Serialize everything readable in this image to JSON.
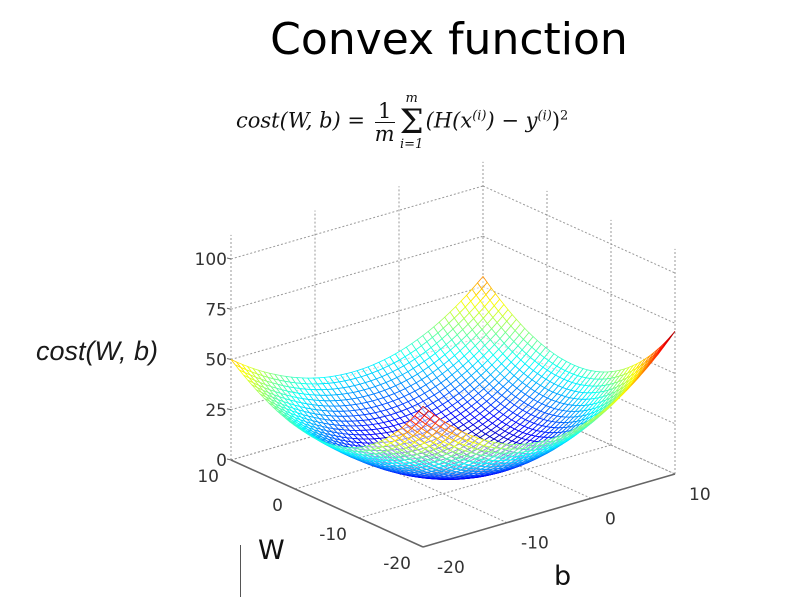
{
  "title": "Convex function",
  "formula": {
    "lhs": "cost(W, b) = ",
    "frac_num": "1",
    "frac_den": "m",
    "sum_upper": "m",
    "sum_lower": "i=1",
    "body_1": "(H(x",
    "body_sup1": "(i)",
    "body_2": ") − y",
    "body_sup2": "(i)",
    "body_3": ")",
    "body_sup3": "2"
  },
  "labels": {
    "z_axis": "cost(W, b)",
    "w_axis": "W",
    "b_axis": "b"
  },
  "chart_data": {
    "type": "surface3d",
    "title": "Convex function",
    "subtitle": "cost(W,b) = 1/m Σ_{i=1}^{m} (H(x^(i)) − y^(i))^2",
    "xlabel": "W",
    "ylabel": "b",
    "zlabel": "cost(W, b)",
    "x_ticks": [
      "10",
      "0",
      "-10",
      "-20"
    ],
    "y_ticks": [
      "-20",
      "-10",
      "0",
      "10"
    ],
    "z_ticks": [
      "0",
      "25",
      "50",
      "75",
      "100"
    ],
    "xlim": [
      -20,
      10
    ],
    "ylim": [
      -20,
      10
    ],
    "zlim": [
      0,
      100
    ],
    "grid": true,
    "colormap": "jet",
    "mesh": "wireframe",
    "corner_values": [
      {
        "W": 10,
        "b": -20,
        "cost": 50
      },
      {
        "W": -20,
        "b": -20,
        "cost": 70
      },
      {
        "W": -20,
        "b": 10,
        "cost": 71
      },
      {
        "W": 10,
        "b": 10,
        "cost": 55
      }
    ],
    "minimum": {
      "W": -5,
      "b": -5,
      "cost": 0
    }
  },
  "colors": {
    "background": "#ffffff",
    "axis": "#666666",
    "grid": "#9a9a9a",
    "text": "#333333"
  }
}
